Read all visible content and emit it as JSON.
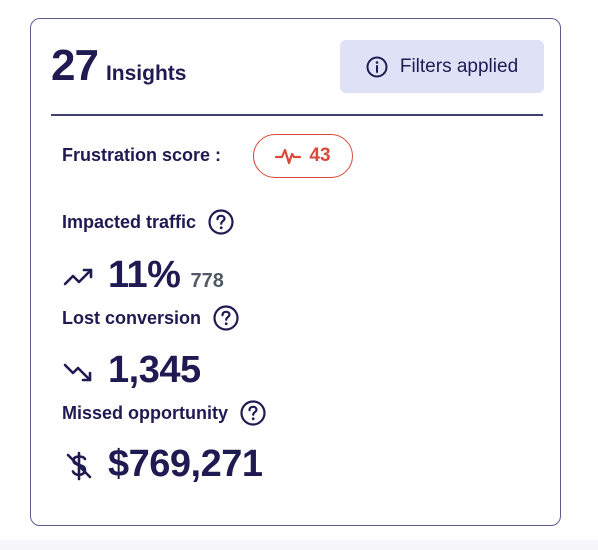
{
  "header": {
    "count": "27",
    "count_label": "Insights",
    "filters_label": "Filters applied"
  },
  "frustration": {
    "label": "Frustration score :",
    "score": "43"
  },
  "impacted_traffic": {
    "label": "Impacted traffic",
    "value": "11%",
    "sub_value": "778"
  },
  "lost_conversion": {
    "label": "Lost conversion",
    "value": "1,345"
  },
  "missed_opportunity": {
    "label": "Missed opportunity",
    "value": "$769,271"
  },
  "colors": {
    "text": "#1f1b52",
    "accent_bg": "#dfe2f7",
    "alert": "#d94a3a",
    "muted": "#4f5a66"
  },
  "icons": {
    "filters": "info-icon",
    "frustration": "pulse-icon",
    "help": "question-circle-icon",
    "traffic": "trend-zigzag-icon",
    "conversion": "trend-down-icon",
    "opportunity": "dollar-slash-icon"
  }
}
